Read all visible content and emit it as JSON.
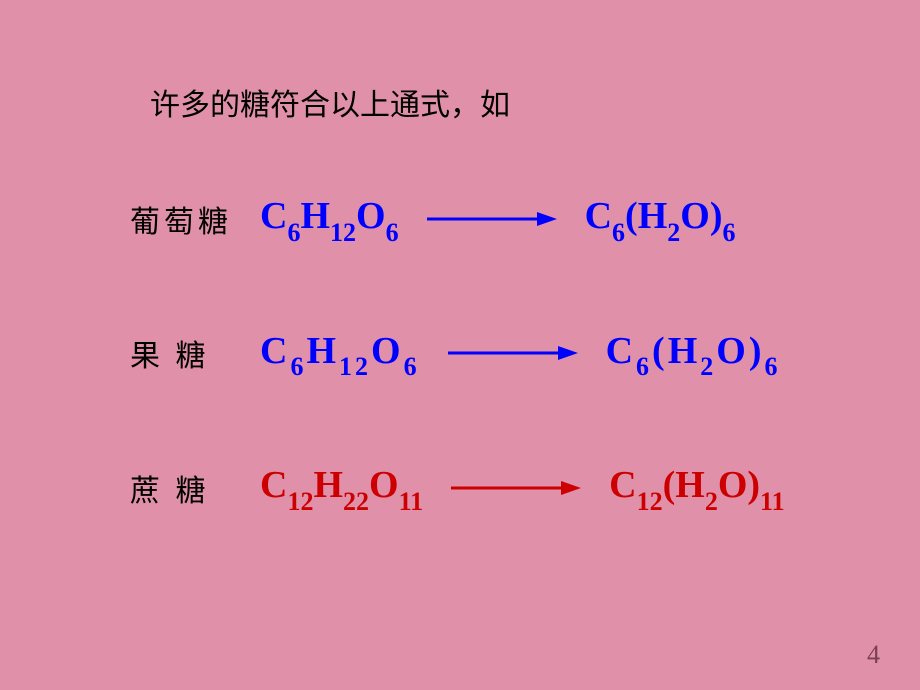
{
  "heading": "许多的糖符合以上通式，如",
  "rows": [
    {
      "label": "葡萄糖",
      "color_class": "blue",
      "arrow_color": "#0000ff",
      "left": {
        "c": "C",
        "c_sub": "6",
        "h": "H",
        "h_sub": "12",
        "o": "O",
        "o_sub": "6"
      },
      "right": {
        "c": "C",
        "c_sub": "6",
        "open": "(",
        "close": ")",
        "h": "H",
        "h_sub": "2",
        "o": "O",
        "o_sub2": "6"
      }
    },
    {
      "label": "果 糖",
      "color_class": "blue",
      "spaced": true,
      "arrow_color": "#0000ff",
      "left": {
        "c": "C",
        "c_sub": "6",
        "h": "H",
        "h_sub": "12",
        "o": "O",
        "o_sub": "6"
      },
      "right": {
        "c": "C",
        "c_sub": "6",
        "open": "(",
        "close": ")",
        "h": "H",
        "h_sub": "2",
        "o": "O",
        "o_sub2": "6"
      }
    },
    {
      "label": "蔗 糖",
      "color_class": "red",
      "arrow_color": "#cc0000",
      "left": {
        "c": "C",
        "c_sub": "12",
        "h": "H",
        "h_sub": "22",
        "o": "O",
        "o_sub": "11"
      },
      "right": {
        "c": "C",
        "c_sub": "12",
        "open": "(",
        "close": ")",
        "h": "H",
        "h_sub": "2",
        "o": "O",
        "o_sub2": "11"
      }
    }
  ],
  "page_number": "4",
  "background_color": "#e091a9"
}
